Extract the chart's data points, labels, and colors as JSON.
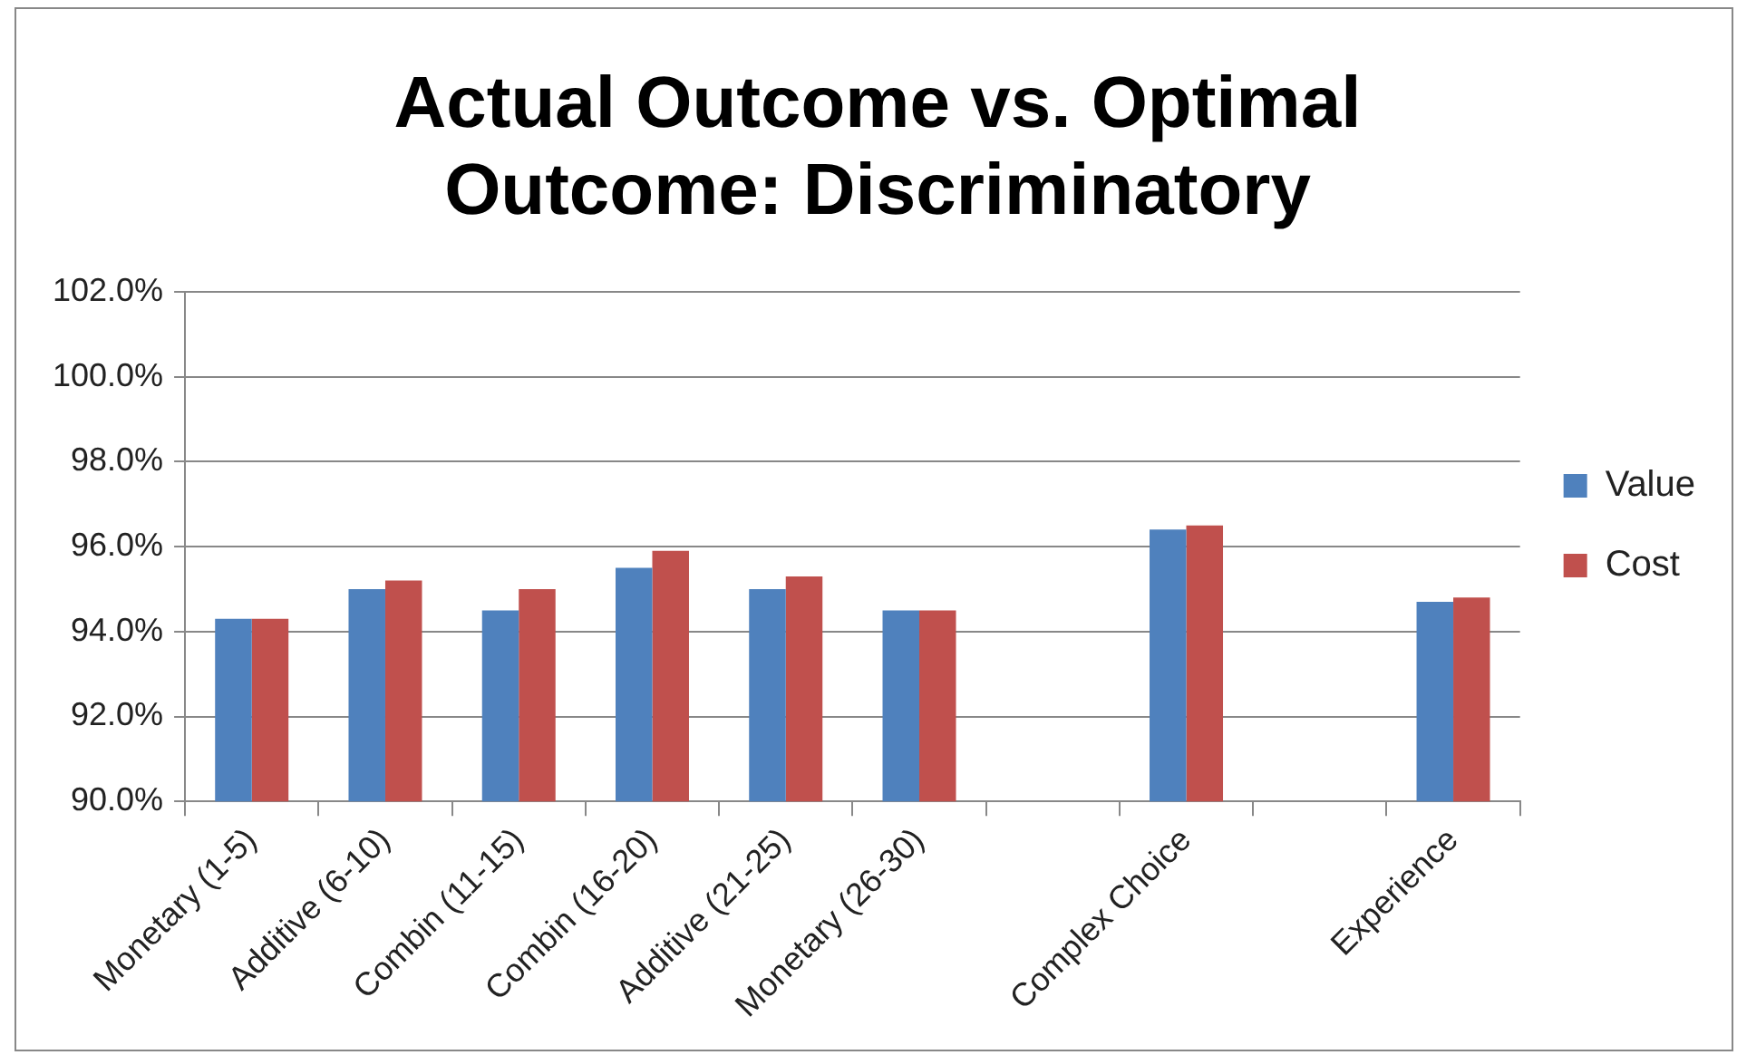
{
  "chart_data": {
    "type": "bar",
    "title": [
      "Actual Outcome vs. Optimal",
      "Outcome: Discriminatory"
    ],
    "categories": [
      "Monetary (1-5)",
      "Additive (6-10)",
      "Combin (11-15)",
      "Combin (16-20)",
      "Additive (21-25)",
      "Monetary (26-30)",
      null,
      "Complex Choice",
      null,
      "Experience"
    ],
    "series": [
      {
        "name": "Value",
        "color": "#4f81bd",
        "values": [
          94.3,
          95.0,
          94.5,
          95.5,
          95.0,
          94.5,
          null,
          96.4,
          null,
          94.7
        ]
      },
      {
        "name": "Cost",
        "color": "#c0504d",
        "values": [
          94.3,
          95.2,
          95.0,
          95.9,
          95.3,
          94.5,
          null,
          96.5,
          null,
          94.8
        ]
      }
    ],
    "ylim": [
      90,
      102
    ],
    "yticks": [
      {
        "value": 90,
        "label": "90.0%"
      },
      {
        "value": 92,
        "label": "92.0%"
      },
      {
        "value": 94,
        "label": "94.0%"
      },
      {
        "value": 96,
        "label": "96.0%"
      },
      {
        "value": 98,
        "label": "98.0%"
      },
      {
        "value": 100,
        "label": "100.0%"
      },
      {
        "value": 102,
        "label": "102.0%"
      }
    ],
    "grid": "y",
    "legend": "right"
  }
}
